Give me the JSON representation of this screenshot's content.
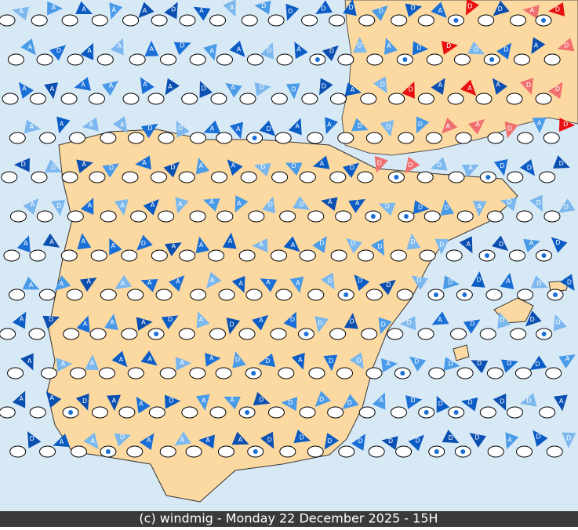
{
  "footer": "(c) windmig - Monday 22 December 2025 - 15H",
  "markers": {
    "ascending": "A",
    "descending": "D"
  }
}
